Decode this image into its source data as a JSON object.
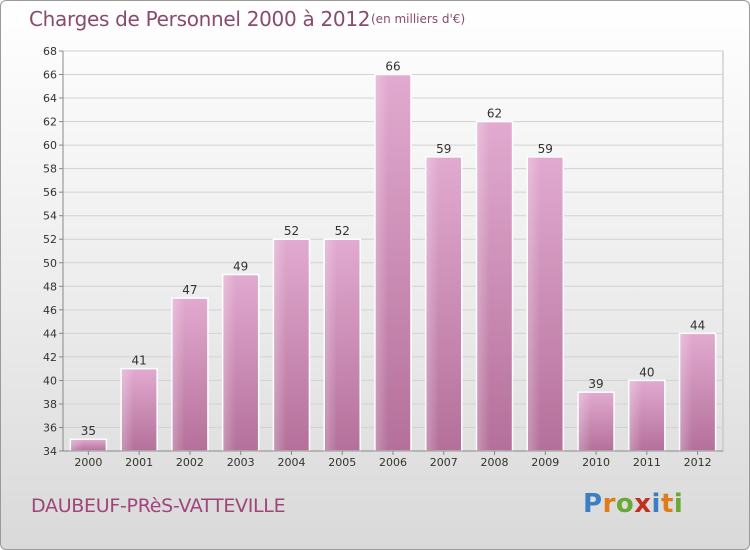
{
  "title": "Charges de Personnel 2000 à 2012",
  "subtitle": "(en milliers d'€)",
  "commune": "DAUBEUF-PRèS-VATTEVILLE",
  "logo": {
    "text": "Proxiti",
    "letters": [
      "P",
      "r",
      "o",
      "x",
      "i",
      "t",
      "i"
    ],
    "colors": [
      "#3a7fc1",
      "#e07b1a",
      "#6aa838",
      "#c0301e",
      "#3a7fc1",
      "#e07b1a",
      "#6aa838"
    ]
  },
  "colors": {
    "bar": "#d89cc4",
    "bar_dark": "#b86a98",
    "text": "#8a4a70"
  },
  "chart_data": {
    "type": "bar",
    "categories": [
      "2000",
      "2001",
      "2002",
      "2003",
      "2004",
      "2005",
      "2006",
      "2007",
      "2008",
      "2009",
      "2010",
      "2011",
      "2012"
    ],
    "values": [
      35,
      41,
      47,
      49,
      52,
      52,
      66,
      59,
      62,
      59,
      39,
      40,
      44
    ],
    "ylim": [
      34,
      68
    ],
    "yticks": [
      34,
      36,
      38,
      40,
      42,
      44,
      46,
      48,
      50,
      52,
      54,
      56,
      58,
      60,
      62,
      64,
      66,
      68
    ],
    "grid": true,
    "title": "Charges de Personnel 2000 à 2012",
    "xlabel": "",
    "ylabel": ""
  }
}
